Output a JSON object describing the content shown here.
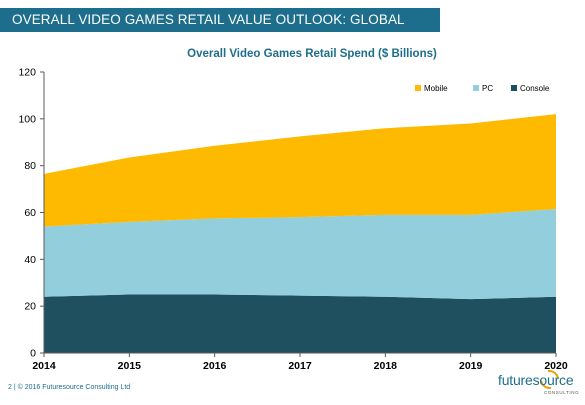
{
  "header": {
    "title": "OVERALL VIDEO GAMES RETAIL VALUE OUTLOOK: GLOBAL"
  },
  "footer": {
    "text": "2 | © 2016 Futuresource Consulting Ltd"
  },
  "logo": {
    "word": "futuresource",
    "sub": "CONSULTING"
  },
  "chart_data": {
    "type": "area",
    "stacked": true,
    "title": "Overall Video Games Retail Spend  ($ Billions)",
    "xlabel": "",
    "ylabel": "",
    "x": [
      "2014",
      "2015",
      "2016",
      "2017",
      "2018",
      "2019",
      "2020"
    ],
    "ylim": [
      0,
      120
    ],
    "yticks": [
      0,
      20,
      40,
      60,
      80,
      100,
      120
    ],
    "grid": false,
    "legend_position": "top-right",
    "series": [
      {
        "name": "Console",
        "color": "#1f5060",
        "values": [
          24,
          25,
          25,
          24.5,
          24,
          23,
          24
        ]
      },
      {
        "name": "PC",
        "color": "#93cedd",
        "values": [
          30,
          31,
          32.5,
          33.5,
          35,
          36,
          37.5
        ]
      },
      {
        "name": "Mobile",
        "color": "#fdba00",
        "values": [
          22.5,
          27.5,
          31,
          34.5,
          37,
          39,
          40.5
        ]
      }
    ],
    "legend_order": [
      "Mobile",
      "PC",
      "Console"
    ]
  }
}
